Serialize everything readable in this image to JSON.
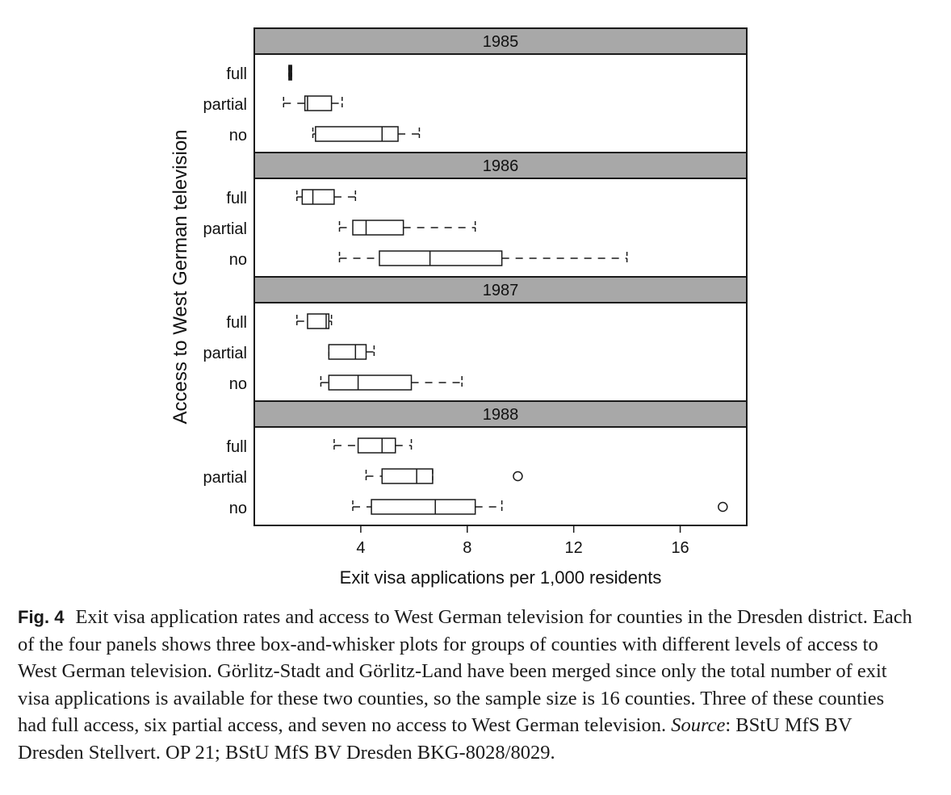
{
  "chart_data": {
    "type": "boxplot",
    "xlabel": "Exit visa applications per 1,000 residents",
    "ylabel": "Access to West German television",
    "xlim": [
      0,
      18.5
    ],
    "xticks": [
      4,
      8,
      12,
      16
    ],
    "categories": [
      "full",
      "partial",
      "no"
    ],
    "panels": [
      {
        "title": "1985",
        "boxes": [
          {
            "category": "full",
            "whisker_low": 1.3,
            "q1": 1.3,
            "median": 1.35,
            "q3": 1.4,
            "whisker_high": 1.4,
            "outliers": []
          },
          {
            "category": "partial",
            "whisker_low": 1.1,
            "q1": 1.9,
            "median": 2.0,
            "q3": 2.9,
            "whisker_high": 3.3,
            "outliers": []
          },
          {
            "category": "no",
            "whisker_low": 2.2,
            "q1": 2.3,
            "median": 4.8,
            "q3": 5.4,
            "whisker_high": 6.2,
            "outliers": []
          }
        ]
      },
      {
        "title": "1986",
        "boxes": [
          {
            "category": "full",
            "whisker_low": 1.6,
            "q1": 1.8,
            "median": 2.2,
            "q3": 3.0,
            "whisker_high": 3.8,
            "outliers": []
          },
          {
            "category": "partial",
            "whisker_low": 3.2,
            "q1": 3.7,
            "median": 4.2,
            "q3": 5.6,
            "whisker_high": 8.3,
            "outliers": []
          },
          {
            "category": "no",
            "whisker_low": 3.2,
            "q1": 4.7,
            "median": 6.6,
            "q3": 9.3,
            "whisker_high": 14.0,
            "outliers": []
          }
        ]
      },
      {
        "title": "1987",
        "boxes": [
          {
            "category": "full",
            "whisker_low": 1.6,
            "q1": 2.0,
            "median": 2.7,
            "q3": 2.8,
            "whisker_high": 2.9,
            "outliers": []
          },
          {
            "category": "partial",
            "whisker_low": 2.8,
            "q1": 2.8,
            "median": 3.8,
            "q3": 4.2,
            "whisker_high": 4.5,
            "outliers": []
          },
          {
            "category": "no",
            "whisker_low": 2.5,
            "q1": 2.8,
            "median": 3.9,
            "q3": 5.9,
            "whisker_high": 7.8,
            "outliers": []
          }
        ]
      },
      {
        "title": "1988",
        "boxes": [
          {
            "category": "full",
            "whisker_low": 3.0,
            "q1": 3.9,
            "median": 4.8,
            "q3": 5.3,
            "whisker_high": 5.9,
            "outliers": []
          },
          {
            "category": "partial",
            "whisker_low": 4.2,
            "q1": 4.8,
            "median": 6.1,
            "q3": 6.7,
            "whisker_high": 6.7,
            "outliers": [
              9.9
            ]
          },
          {
            "category": "no",
            "whisker_low": 3.7,
            "q1": 4.4,
            "median": 6.8,
            "q3": 8.3,
            "whisker_high": 9.3,
            "outliers": [
              17.6
            ]
          }
        ]
      }
    ]
  },
  "caption": {
    "label": "Fig. 4",
    "text_before_source": "Exit visa application rates and access to West German television for counties in the Dresden district. Each of the four panels shows three box-and-whisker plots for groups of counties with different levels of access to West German television. Görlitz-Stadt and Görlitz-Land have been merged since only the total number of exit visa applications is available for these two counties, so the sample size is 16 counties. Three of these counties had full access, six partial access, and seven no access to West German television.",
    "source_label": "Source",
    "source_text": ": BStU MfS BV Dresden Stellvert. OP 21; BStU MfS BV Dresden BKG-8028/8029."
  },
  "colors": {
    "panel_header": "#a8a8a8",
    "stroke": "#1a1a1a",
    "text": "#111111"
  }
}
